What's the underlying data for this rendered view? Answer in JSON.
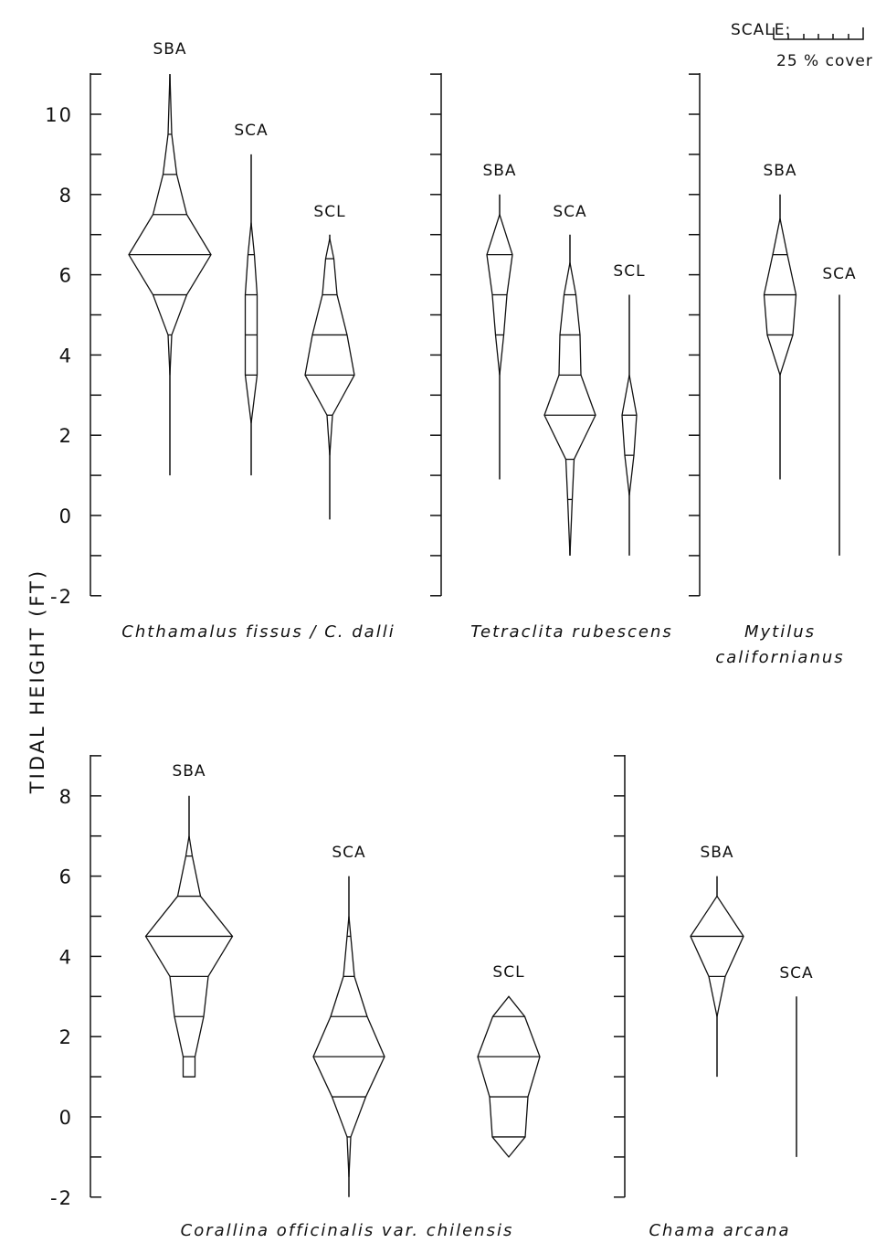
{
  "y_axis_label": "TIDAL HEIGHT (FT)",
  "scale": {
    "label": "SCALE:",
    "caption": "25 % cover"
  },
  "chart_data": [
    {
      "type": "kite",
      "panel": "top",
      "yticks": [
        "-2",
        "0",
        "2",
        "4",
        "6",
        "8",
        "10"
      ],
      "yrange": [
        -2,
        11
      ],
      "species": [
        {
          "name": "Chthamalus fissus / C. dalli",
          "series": [
            {
              "site": "SBA",
              "range": [
                1.0,
                11.0
              ],
              "profile": [
                [
                  3.5,
                  0
                ],
                [
                  4.5,
                  4
                ],
                [
                  5.5,
                  37
                ],
                [
                  6.5,
                  90
                ],
                [
                  7.5,
                  37
                ],
                [
                  8.5,
                  15
                ],
                [
                  9.5,
                  4
                ],
                [
                  11.0,
                  0
                ]
              ]
            },
            {
              "site": "SCA",
              "range": [
                1.0,
                9.0
              ],
              "profile": [
                [
                  2.3,
                  0
                ],
                [
                  3.5,
                  13
                ],
                [
                  4.5,
                  13
                ],
                [
                  5.5,
                  13
                ],
                [
                  6.5,
                  7
                ],
                [
                  7.3,
                  0
                ]
              ]
            },
            {
              "site": "SCL",
              "range": [
                -0.1,
                7.0
              ],
              "profile": [
                [
                  1.5,
                  0
                ],
                [
                  2.5,
                  6
                ],
                [
                  3.5,
                  54
                ],
                [
                  4.5,
                  38
                ],
                [
                  5.5,
                  16
                ],
                [
                  6.4,
                  9
                ],
                [
                  6.9,
                  0
                ]
              ]
            }
          ]
        },
        {
          "name": "Tetraclita rubescens",
          "series": [
            {
              "site": "SBA",
              "range": [
                0.9,
                8.0
              ],
              "profile": [
                [
                  3.5,
                  0
                ],
                [
                  4.5,
                  9
                ],
                [
                  5.5,
                  16
                ],
                [
                  6.5,
                  28
                ],
                [
                  7.5,
                  0
                ]
              ]
            },
            {
              "site": "SCA",
              "range": [
                -1.0,
                7.0
              ],
              "profile": [
                [
                  -1.0,
                  0
                ],
                [
                  0.4,
                  5
                ],
                [
                  1.4,
                  9
                ],
                [
                  2.5,
                  56
                ],
                [
                  3.5,
                  24
                ],
                [
                  4.5,
                  22
                ],
                [
                  5.5,
                  13
                ],
                [
                  6.3,
                  0
                ]
              ]
            },
            {
              "site": "SCL",
              "range": [
                -1.0,
                5.5
              ],
              "profile": [
                [
                  0.5,
                  0
                ],
                [
                  1.5,
                  10
                ],
                [
                  2.5,
                  16
                ],
                [
                  3.5,
                  0
                ]
              ]
            }
          ]
        },
        {
          "name": "Mytilus californianus",
          "series": [
            {
              "site": "SBA",
              "range": [
                0.9,
                8.0
              ],
              "profile": [
                [
                  3.5,
                  0
                ],
                [
                  4.5,
                  28
                ],
                [
                  5.5,
                  35
                ],
                [
                  6.5,
                  16
                ],
                [
                  7.4,
                  0
                ]
              ]
            },
            {
              "site": "SCA",
              "range": [
                -1.0,
                5.5
              ],
              "profile": []
            }
          ]
        }
      ]
    },
    {
      "type": "kite",
      "panel": "bottom",
      "yticks": [
        "-2",
        "0",
        "2",
        "4",
        "6",
        "8"
      ],
      "yrange": [
        -2,
        9
      ],
      "species": [
        {
          "name": "Corallina officinalis var. chilensis",
          "series": [
            {
              "site": "SBA",
              "range": [
                1.0,
                8.0
              ],
              "profile": [
                [
                  1.0,
                  0
                ],
                [
                  1.0,
                  13
                ],
                [
                  1.5,
                  13
                ],
                [
                  2.5,
                  32
                ],
                [
                  3.5,
                  42
                ],
                [
                  4.5,
                  95
                ],
                [
                  5.5,
                  25
                ],
                [
                  6.5,
                  7
                ],
                [
                  7.0,
                  0
                ]
              ]
            },
            {
              "site": "SCA",
              "range": [
                -2.0,
                6.0
              ],
              "profile": [
                [
                  -1.5,
                  0
                ],
                [
                  -0.5,
                  4
                ],
                [
                  0.5,
                  37
                ],
                [
                  1.5,
                  78
                ],
                [
                  2.5,
                  40
                ],
                [
                  3.5,
                  12
                ],
                [
                  4.5,
                  4
                ],
                [
                  5.0,
                  0
                ]
              ]
            },
            {
              "site": "SCL",
              "range": [
                -1.0,
                3.0
              ],
              "profile": [
                [
                  -1.0,
                  0
                ],
                [
                  -0.5,
                  36
                ],
                [
                  0.5,
                  42
                ],
                [
                  1.5,
                  68
                ],
                [
                  2.5,
                  35
                ],
                [
                  3.0,
                  0
                ]
              ]
            }
          ]
        },
        {
          "name": "Chama arcana",
          "series": [
            {
              "site": "SBA",
              "range": [
                1.0,
                6.0
              ],
              "profile": [
                [
                  2.5,
                  0
                ],
                [
                  3.5,
                  18
                ],
                [
                  4.5,
                  58
                ],
                [
                  5.5,
                  0
                ]
              ]
            },
            {
              "site": "SCA",
              "range": [
                -1.0,
                3.0
              ],
              "profile": []
            }
          ]
        }
      ]
    }
  ]
}
